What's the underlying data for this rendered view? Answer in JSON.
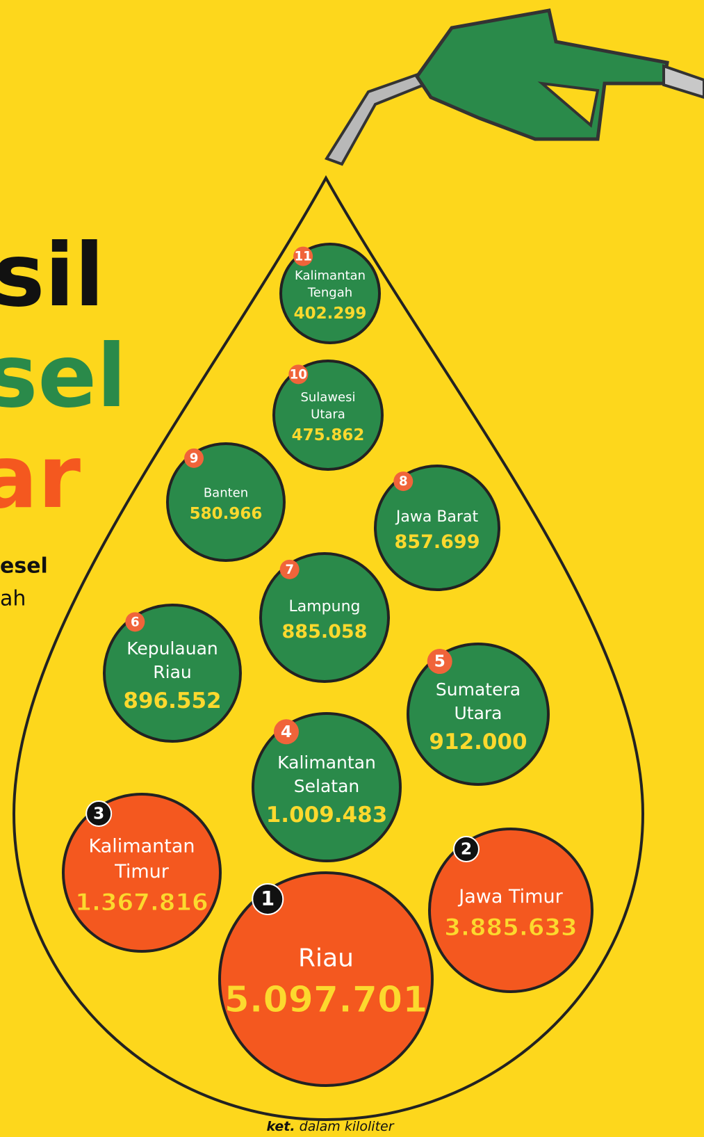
{
  "header": {
    "title_lines": [
      "sil",
      "sel",
      "ar"
    ],
    "subtitle_lines": [
      "esel",
      "ah"
    ]
  },
  "items": [
    {
      "rank": 1,
      "name": [
        "Riau"
      ],
      "value": "5.097.701"
    },
    {
      "rank": 2,
      "name": [
        "Jawa Timur"
      ],
      "value": "3.885.633"
    },
    {
      "rank": 3,
      "name": [
        "Kalimantan",
        "Timur"
      ],
      "value": "1.367.816"
    },
    {
      "rank": 4,
      "name": [
        "Kalimantan",
        "Selatan"
      ],
      "value": "1.009.483"
    },
    {
      "rank": 5,
      "name": [
        "Sumatera",
        "Utara"
      ],
      "value": "912.000"
    },
    {
      "rank": 6,
      "name": [
        "Kepulauan",
        "Riau"
      ],
      "value": "896.552"
    },
    {
      "rank": 7,
      "name": [
        "Lampung"
      ],
      "value": "885.058"
    },
    {
      "rank": 8,
      "name": [
        "Jawa Barat"
      ],
      "value": "857.699"
    },
    {
      "rank": 9,
      "name": [
        "Banten"
      ],
      "value": "580.966"
    },
    {
      "rank": 10,
      "name": [
        "Sulawesi",
        "Utara"
      ],
      "value": "475.862"
    },
    {
      "rank": 11,
      "name": [
        "Kalimantan",
        "Tengah"
      ],
      "value": "402.299"
    }
  ],
  "footer": {
    "label": "ket.",
    "note": "dalam kiloliter"
  }
}
